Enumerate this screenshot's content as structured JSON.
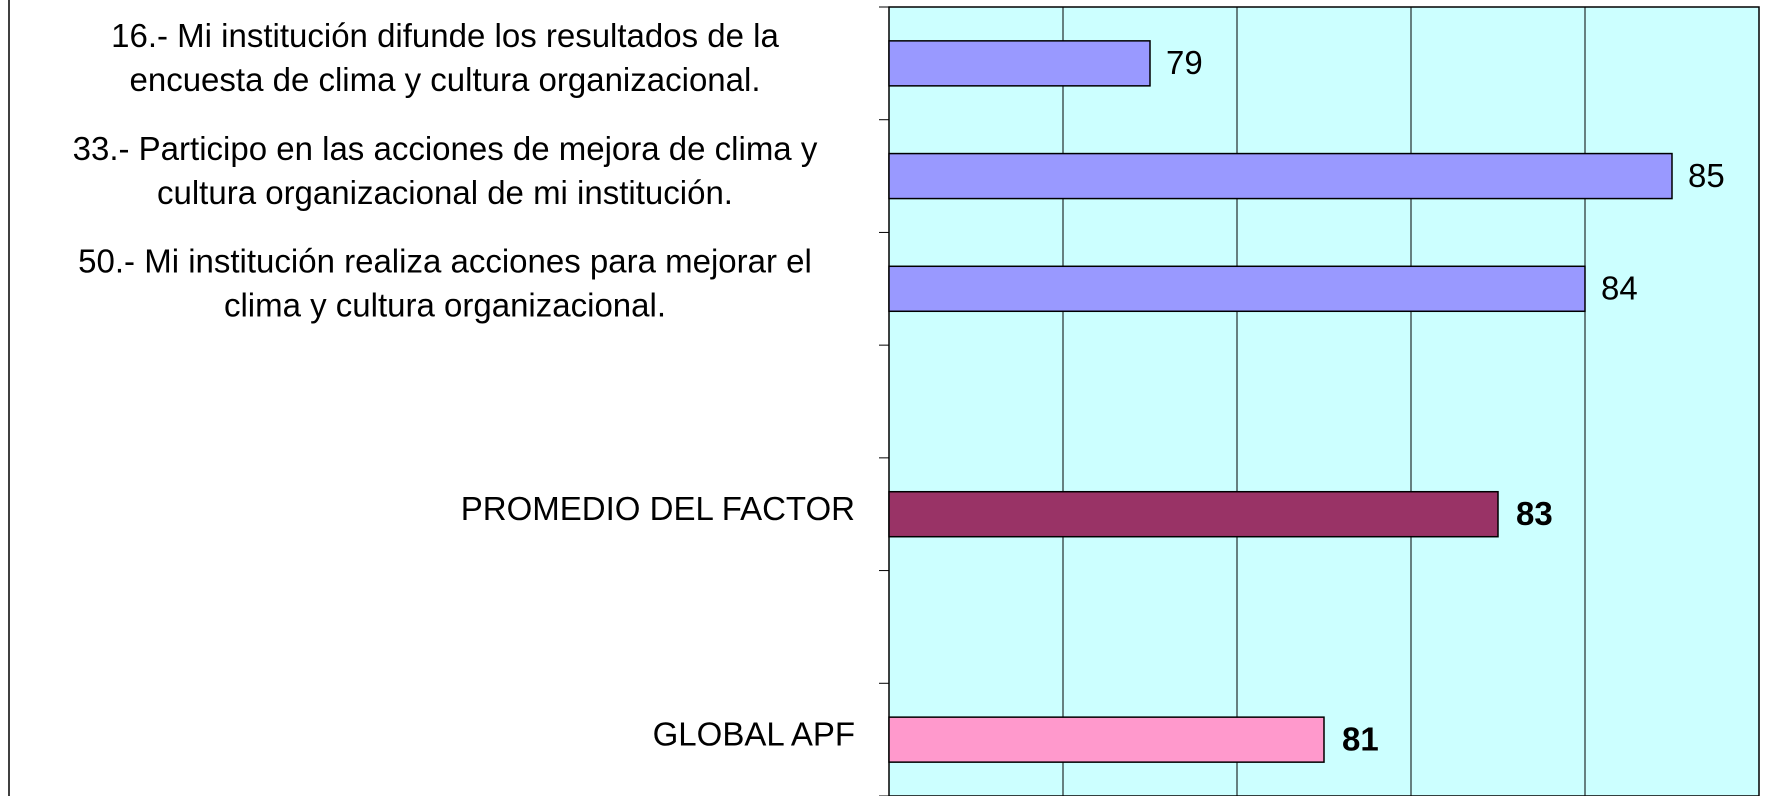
{
  "chart_data": {
    "type": "barh",
    "categories": [
      [
        "16.- Mi institución difunde los resultados de la",
        "encuesta de clima y cultura organizacional."
      ],
      [
        "33.- Participo en las acciones de mejora de clima y",
        "cultura organizacional de mi institución."
      ],
      [
        "50.- Mi institución realiza acciones para mejorar el",
        "clima y cultura organizacional."
      ],
      null,
      [
        "PROMEDIO DEL FACTOR"
      ],
      null,
      [
        "GLOBAL APF"
      ]
    ],
    "values": [
      79,
      85,
      84,
      null,
      83,
      null,
      81
    ],
    "colors": [
      "#9999ff",
      "#9999ff",
      "#9999ff",
      null,
      "#993366",
      null,
      "#ff99cc"
    ],
    "bold_labels": [
      false,
      false,
      false,
      null,
      true,
      null,
      true
    ],
    "xlim": [
      76,
      86
    ],
    "xticks": [
      76,
      78,
      80,
      82,
      84,
      86
    ],
    "grid": true,
    "plot_background": "#ccffff"
  }
}
